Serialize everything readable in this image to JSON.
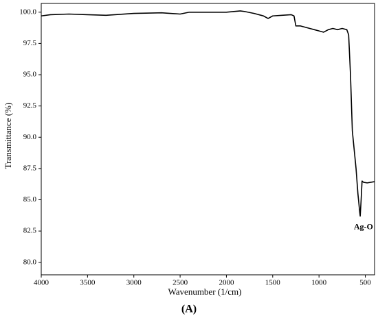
{
  "chart_data": {
    "type": "line",
    "x_label": "Wavenumber (1/cm)",
    "y_label": "Transmittance (%)",
    "caption": "(A)",
    "annotation": {
      "text": "Ag-O",
      "x": 520,
      "y": 82.8
    },
    "color": "#000000",
    "x": [
      4000,
      3900,
      3700,
      3500,
      3300,
      3000,
      2700,
      2500,
      2400,
      2200,
      2000,
      1850,
      1800,
      1700,
      1600,
      1550,
      1500,
      1400,
      1300,
      1270,
      1250,
      1200,
      1100,
      1050,
      1000,
      950,
      900,
      850,
      800,
      750,
      700,
      680,
      660,
      640,
      620,
      600,
      580,
      560,
      555,
      545,
      535,
      520,
      480,
      440,
      400
    ],
    "values": [
      99.7,
      99.8,
      99.85,
      99.8,
      99.75,
      99.9,
      99.95,
      99.85,
      100.0,
      100.0,
      100.0,
      100.1,
      100.05,
      99.9,
      99.7,
      99.5,
      99.7,
      99.75,
      99.8,
      99.7,
      98.9,
      98.9,
      98.7,
      98.6,
      98.5,
      98.4,
      98.6,
      98.7,
      98.6,
      98.7,
      98.6,
      98.2,
      95.0,
      90.5,
      89.0,
      87.5,
      85.5,
      84.0,
      83.7,
      85.0,
      86.5,
      86.4,
      86.35,
      86.4,
      86.45
    ],
    "xlim": [
      4000,
      400
    ],
    "ylim": [
      79.0,
      100.7
    ],
    "xticks": [
      4000,
      3500,
      3000,
      2500,
      2000,
      1500,
      1000,
      500
    ],
    "yticks": [
      {
        "value": 100,
        "label": "100.0"
      },
      97.5,
      {
        "value": 95,
        "label": "95.0"
      },
      92.5,
      {
        "value": 90,
        "label": "90.0"
      },
      87.5,
      {
        "value": 85,
        "label": "85.0"
      },
      82.5,
      {
        "value": 80,
        "label": "80.0"
      }
    ]
  }
}
